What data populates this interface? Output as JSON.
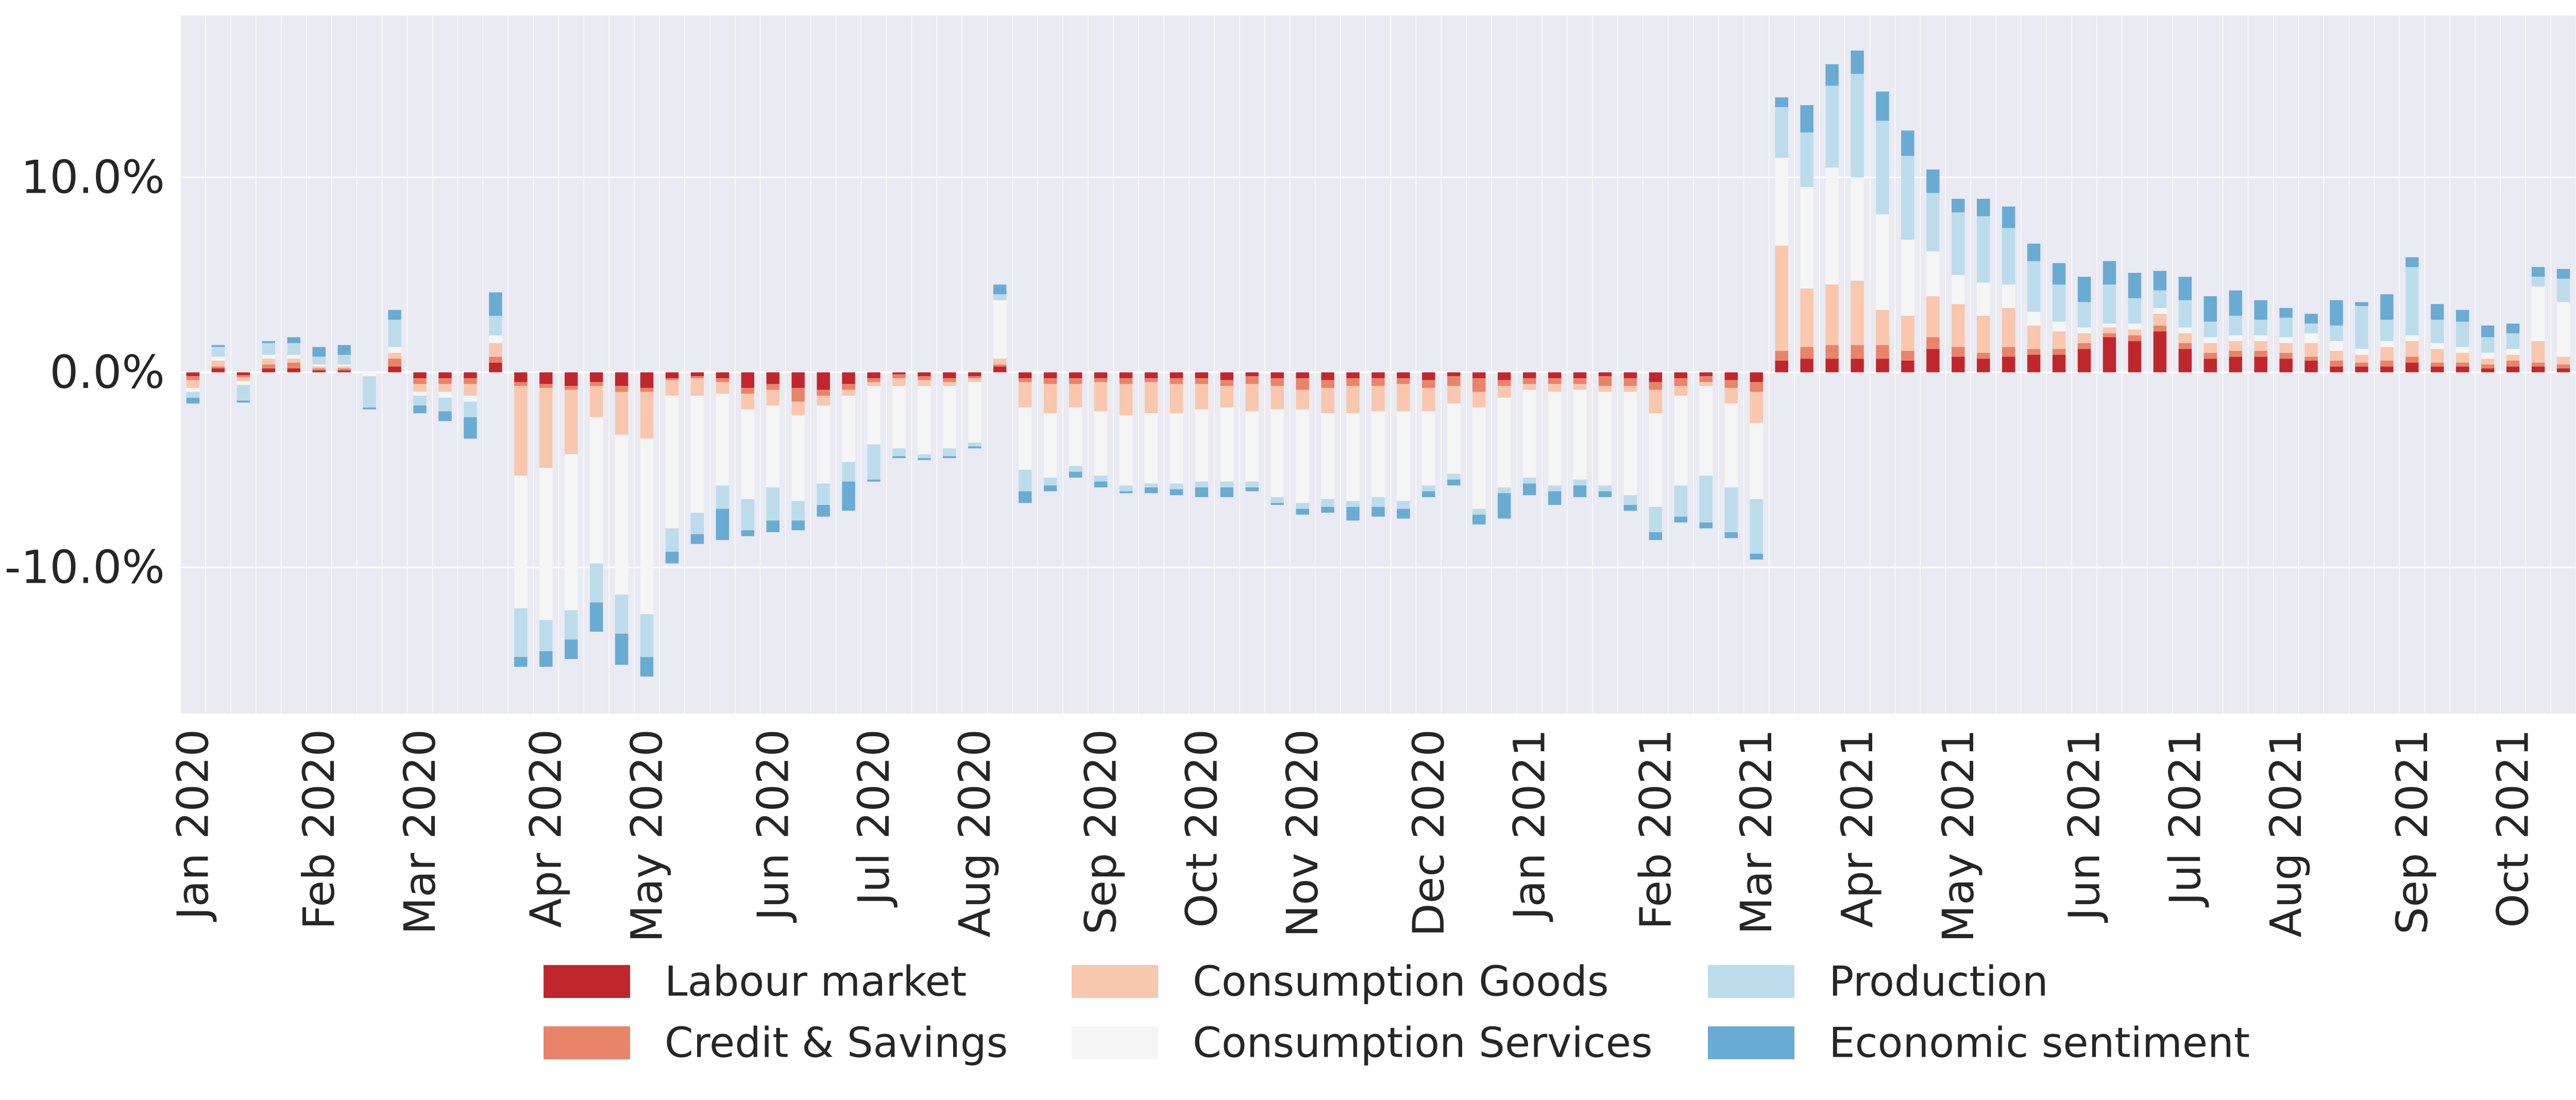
{
  "chart_data": {
    "type": "bar",
    "stacked": true,
    "title": "",
    "xlabel": "",
    "ylabel": "",
    "ylim": [
      -17.5,
      18.3
    ],
    "grid": true,
    "legend_position": "bottom-center",
    "y_ticks": [
      {
        "value": 10,
        "label": "10.0%"
      },
      {
        "value": 0,
        "label": "0.0%"
      },
      {
        "value": -10,
        "label": "-10.0%"
      }
    ],
    "x_ticks": [
      {
        "index": 0,
        "label": "Jan 2020"
      },
      {
        "index": 5,
        "label": "Feb 2020"
      },
      {
        "index": 9,
        "label": "Mar 2020"
      },
      {
        "index": 14,
        "label": "Apr 2020"
      },
      {
        "index": 18,
        "label": "May 2020"
      },
      {
        "index": 23,
        "label": "Jun 2020"
      },
      {
        "index": 27,
        "label": "Jul 2020"
      },
      {
        "index": 31,
        "label": "Aug 2020"
      },
      {
        "index": 36,
        "label": "Sep 2020"
      },
      {
        "index": 40,
        "label": "Oct 2020"
      },
      {
        "index": 44,
        "label": "Nov 2020"
      },
      {
        "index": 49,
        "label": "Dec 2020"
      },
      {
        "index": 53,
        "label": "Jan 2021"
      },
      {
        "index": 58,
        "label": "Feb 2021"
      },
      {
        "index": 62,
        "label": "Mar 2021"
      },
      {
        "index": 66,
        "label": "Apr 2021"
      },
      {
        "index": 70,
        "label": "May 2021"
      },
      {
        "index": 75,
        "label": "Jun 2021"
      },
      {
        "index": 79,
        "label": "Jul 2021"
      },
      {
        "index": 83,
        "label": "Aug 2021"
      },
      {
        "index": 88,
        "label": "Sep 2021"
      },
      {
        "index": 92,
        "label": "Oct 2021"
      }
    ],
    "n_weeks": 95,
    "series": [
      {
        "name": "Labour market",
        "color": "#c0272d",
        "values": [
          0.2,
          0.2,
          0.15,
          0.2,
          0.2,
          0.1,
          0.1,
          0,
          0.3,
          0.3,
          0.3,
          0.3,
          0.5,
          0.5,
          0.6,
          0.7,
          0.5,
          0.7,
          0.8,
          0.3,
          0.2,
          0.3,
          0.8,
          0.6,
          0.8,
          0.9,
          0.6,
          0.3,
          0.1,
          0.2,
          0.3,
          0.2,
          0.3,
          0.3,
          0.3,
          0.3,
          0.3,
          0.3,
          0.3,
          0.3,
          0.3,
          0.4,
          0.2,
          0.3,
          0.3,
          0.4,
          0.3,
          0.3,
          0.3,
          0.4,
          0.2,
          0.3,
          0.4,
          0.3,
          0.3,
          0.3,
          0.2,
          0.3,
          0.5,
          0.3,
          0.2,
          0.4,
          0.5,
          0.6,
          0.7,
          0.7,
          0.7,
          0.7,
          0.6,
          1.2,
          0.8,
          0.7,
          0.8,
          0.9,
          0.9,
          1.2,
          1.8,
          1.6,
          2.1,
          1.2,
          0.7,
          0.8,
          0.8,
          0.7,
          0.6,
          0.3,
          0.3,
          0.3,
          0.5,
          0.3,
          0.3,
          0.2,
          0.3,
          0.3,
          0.2
        ]
      },
      {
        "name": "Credit & Savings",
        "color": "#e8846a",
        "values": [
          0.2,
          0.1,
          0.1,
          0.2,
          0.3,
          0.1,
          0.1,
          0,
          0.4,
          0.3,
          0.3,
          0.3,
          0.3,
          0.2,
          0.2,
          0.2,
          0.2,
          0.3,
          0.2,
          0.1,
          0.1,
          0.2,
          0.3,
          0.3,
          0.7,
          0.3,
          0.3,
          0.2,
          0.2,
          0.2,
          0.2,
          0.1,
          0.1,
          0.2,
          0.3,
          0.3,
          0.2,
          0.3,
          0.2,
          0.3,
          0.3,
          0.3,
          0.4,
          0.4,
          0.6,
          0.4,
          0.4,
          0.4,
          0.3,
          0.4,
          0.5,
          0.7,
          0.3,
          0.3,
          0.3,
          0.3,
          0.5,
          0.4,
          0.4,
          0.4,
          0.3,
          0.4,
          0.5,
          0.5,
          0.6,
          0.7,
          0.7,
          0.7,
          0.5,
          0.6,
          0.5,
          0.3,
          0.5,
          0.3,
          0.3,
          0.3,
          0.2,
          0.3,
          0.3,
          0.3,
          0.3,
          0.3,
          0.3,
          0.3,
          0.2,
          0.3,
          0.2,
          0.3,
          0.3,
          0.2,
          0.2,
          0.2,
          0.3,
          0.2,
          0.2
        ]
      },
      {
        "name": "Consumption Goods",
        "color": "#f8c7ae",
        "values": [
          0.4,
          0.3,
          0.2,
          0.3,
          0.2,
          0.1,
          0.1,
          0,
          0.3,
          0.4,
          0.4,
          0.6,
          0.7,
          4.6,
          4.1,
          3.3,
          1.6,
          2.2,
          2.4,
          0.8,
          0.9,
          0.6,
          0.8,
          0.8,
          0.7,
          0.5,
          0.3,
          0.2,
          0.4,
          0.3,
          0.2,
          0.2,
          0.3,
          1.3,
          1.5,
          1.2,
          1.5,
          1.6,
          1.6,
          1.5,
          1.3,
          1.1,
          1.4,
          1.2,
          1.0,
          1.3,
          1.4,
          1.3,
          1.4,
          1.2,
          0.9,
          0.8,
          0.6,
          0.3,
          0.4,
          0.3,
          0.3,
          0.3,
          1.2,
          0.5,
          0.2,
          0.8,
          1.6,
          5.4,
          3.0,
          3.1,
          3.3,
          1.8,
          1.8,
          2.1,
          2.2,
          1.9,
          2.0,
          1.2,
          0.9,
          0.5,
          0.3,
          0.3,
          0.6,
          0.5,
          0.5,
          0.5,
          0.5,
          0.5,
          0.7,
          0.5,
          0.4,
          0.7,
          0.8,
          0.7,
          0.5,
          0.3,
          0.3,
          1.1,
          0.4
        ]
      },
      {
        "name": "Consumption Services",
        "color": "#f5f5f5",
        "values": [
          0.2,
          0.2,
          0.2,
          0.2,
          0.2,
          0.1,
          0.1,
          0.2,
          0.3,
          0.2,
          0.3,
          0.3,
          0.4,
          6.8,
          7.8,
          8.0,
          7.5,
          8.2,
          9.0,
          6.8,
          6.0,
          4.7,
          4.6,
          4.2,
          4.4,
          4.0,
          3.4,
          3.0,
          3.2,
          3.5,
          3.2,
          3.1,
          3.0,
          3.2,
          3.3,
          3.0,
          3.3,
          3.6,
          3.6,
          3.6,
          3.7,
          3.8,
          3.6,
          4.5,
          4.8,
          4.4,
          4.5,
          4.4,
          4.6,
          3.8,
          3.6,
          5.2,
          4.6,
          4.5,
          4.8,
          4.6,
          4.8,
          5.3,
          4.8,
          4.6,
          4.6,
          4.3,
          3.9,
          4.5,
          5.2,
          6.0,
          5.3,
          4.9,
          3.9,
          2.3,
          1.5,
          1.7,
          1.2,
          0.7,
          0.5,
          0.3,
          0.2,
          0.3,
          0.3,
          0.3,
          0.3,
          0.3,
          0.3,
          0.3,
          0.5,
          0.5,
          0.3,
          0.3,
          0.3,
          0.3,
          0.3,
          0.3,
          0.3,
          2.8,
          2.8
        ]
      },
      {
        "name": "Production",
        "color": "#bcdcec",
        "values": [
          0.3,
          0.5,
          0.8,
          0.6,
          0.6,
          0.4,
          0.5,
          1.6,
          1.4,
          0.5,
          0.7,
          0.8,
          1.0,
          2.5,
          1.6,
          1.5,
          2.0,
          2.0,
          2.2,
          1.2,
          1.1,
          1.2,
          1.6,
          1.7,
          1.0,
          1.1,
          1.0,
          1.8,
          0.4,
          0.2,
          0.4,
          0.2,
          0.3,
          1.1,
          0.4,
          0.3,
          0.3,
          0.3,
          0.2,
          0.3,
          0.3,
          0.3,
          0.3,
          0.3,
          0.3,
          0.4,
          0.3,
          0.5,
          0.4,
          0.3,
          0.3,
          0.3,
          0.3,
          0.3,
          0.3,
          0.3,
          0.3,
          0.5,
          1.3,
          1.6,
          2.4,
          2.3,
          2.8,
          2.6,
          2.8,
          4.2,
          5.3,
          4.8,
          4.3,
          3.0,
          3.2,
          3.4,
          2.9,
          2.6,
          1.9,
          1.3,
          2.0,
          1.3,
          0.9,
          1.4,
          0.8,
          1.0,
          0.8,
          1.0,
          0.5,
          0.8,
          2.2,
          1.1,
          3.5,
          1.2,
          1.3,
          0.8,
          0.8,
          0.5,
          1.2
        ]
      },
      {
        "name": "Economic sentiment",
        "color": "#6aabd3",
        "values": [
          0.3,
          0.1,
          0.1,
          0.1,
          0.3,
          0.5,
          0.5,
          0.1,
          0.5,
          0.4,
          0.5,
          1.1,
          1.2,
          0.5,
          0.8,
          1.0,
          1.5,
          1.6,
          1.0,
          0.6,
          0.5,
          1.6,
          0.3,
          0.6,
          0.5,
          0.6,
          1.5,
          0.1,
          0.1,
          0.1,
          0.1,
          0.1,
          0.5,
          0.6,
          0.3,
          0.3,
          0.3,
          0.1,
          0.3,
          0.3,
          0.5,
          0.5,
          0.2,
          0.1,
          0.3,
          0.3,
          0.7,
          0.5,
          0.5,
          0.3,
          0.3,
          0.5,
          1.3,
          0.6,
          0.7,
          0.6,
          0.3,
          0.3,
          0.4,
          0.3,
          0.3,
          0.3,
          0.3,
          0.5,
          1.4,
          1.1,
          1.2,
          1.5,
          1.3,
          1.2,
          0.7,
          0.9,
          1.1,
          0.9,
          1.1,
          1.3,
          1.2,
          1.3,
          1.0,
          1.2,
          1.3,
          1.3,
          1.0,
          0.5,
          0.5,
          1.3,
          0.2,
          1.3,
          0.5,
          0.8,
          0.6,
          0.6,
          0.5,
          0.5,
          0.5
        ]
      }
    ],
    "signs": [
      -1,
      1,
      -1,
      1,
      1,
      1,
      1,
      -1,
      1,
      -1,
      -1,
      -1,
      1,
      -1,
      -1,
      -1,
      -1,
      -1,
      -1,
      -1,
      -1,
      -1,
      -1,
      -1,
      -1,
      -1,
      -1,
      -1,
      -1,
      -1,
      -1,
      -1,
      1,
      -1,
      -1,
      -1,
      -1,
      -1,
      -1,
      -1,
      -1,
      -1,
      -1,
      -1,
      -1,
      -1,
      -1,
      -1,
      -1,
      -1,
      -1,
      -1,
      -1,
      -1,
      -1,
      -1,
      -1,
      -1,
      -1,
      -1,
      -1,
      -1,
      -1,
      1,
      1,
      1,
      1,
      1,
      1,
      1,
      1,
      1,
      1,
      1,
      1,
      1,
      1,
      1,
      1,
      1,
      1,
      1,
      1,
      1,
      1,
      1,
      1,
      1,
      1,
      1,
      1,
      1,
      1,
      1,
      1
    ]
  }
}
